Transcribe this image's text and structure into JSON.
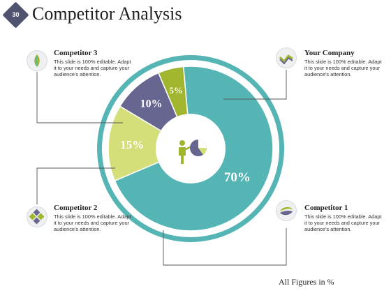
{
  "slide_number": "30",
  "title": "Competitor Analysis",
  "footer_note": "All Figures  in %",
  "chart_data": {
    "type": "pie",
    "segments": [
      {
        "label": "70%",
        "value": 70,
        "color": "#55b5b5",
        "company": "Your Company"
      },
      {
        "label": "15%",
        "value": 15,
        "color": "#d4df7a",
        "company": "Competitor 1"
      },
      {
        "label": "10%",
        "value": 10,
        "color": "#666690",
        "company": "Competitor 2"
      },
      {
        "label": "5%",
        "value": 5,
        "color": "#a1b52f",
        "company": "Competitor 3"
      }
    ]
  },
  "callouts": {
    "your_company": {
      "title": "Your Company",
      "desc": "This slide is 100% editable. Adapt it to your needs and capture your audience's attention.",
      "icon": "arrow-zigzag-icon"
    },
    "competitor1": {
      "title": "Competitor 1",
      "desc": "This slide is 100% editable. Adapt it to your needs and capture your audience's attention.",
      "icon": "swoosh-globe-icon"
    },
    "competitor2": {
      "title": "Competitor 2",
      "desc": "This slide is 100% editable. Adapt it to your needs and capture your audience's attention.",
      "icon": "diamond-cluster-icon"
    },
    "competitor3": {
      "title": "Competitor 3",
      "desc": "This slide is 100% editable. Adapt it to your needs and capture your audience's attention.",
      "icon": "leaf-drop-icon"
    }
  },
  "center_icon": "presenter-chart-icon"
}
